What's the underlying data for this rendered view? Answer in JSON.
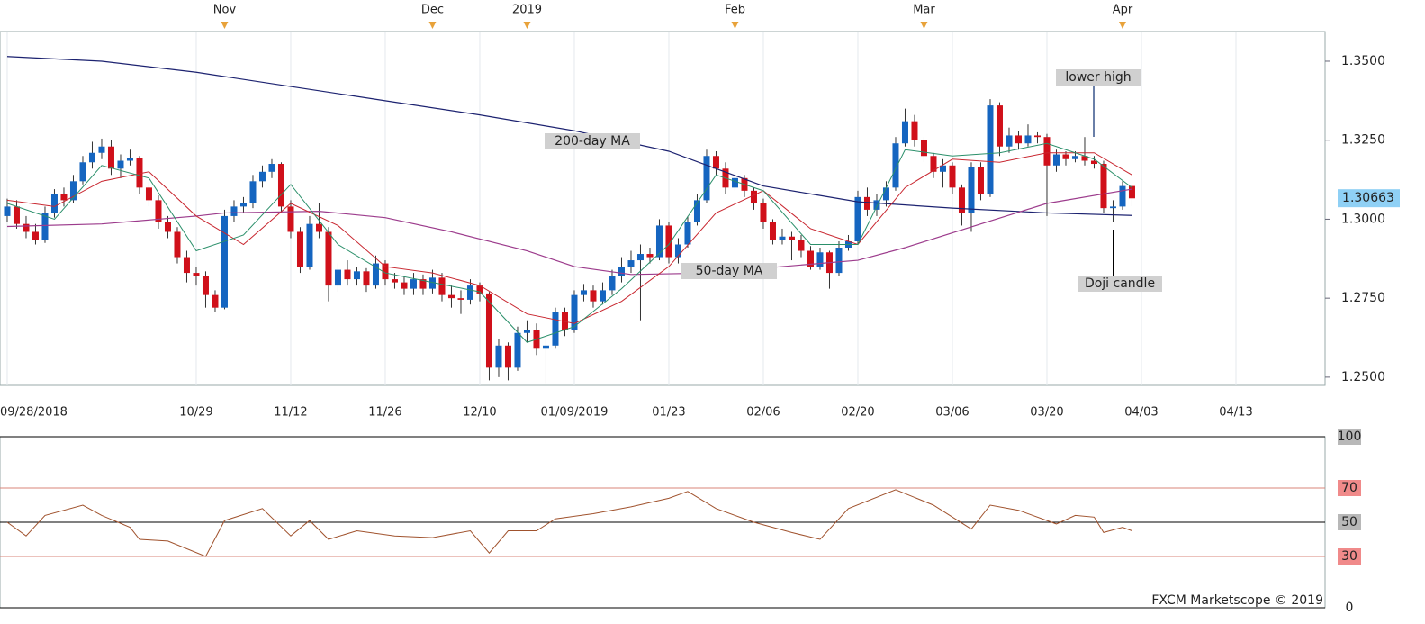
{
  "chart_data": [
    {
      "type": "candlestick",
      "up_color": "#1565c0",
      "down_color": "#d0101a",
      "xlim": [
        -0.76,
        139.43
      ],
      "ylim": [
        1.2474,
        1.3594
      ],
      "yticks": [
        {
          "value": 1.25,
          "label": "1.2500"
        },
        {
          "value": 1.275,
          "label": "1.2750"
        },
        {
          "value": 1.3,
          "label": "1.3000"
        },
        {
          "value": 1.325,
          "label": "1.3250"
        },
        {
          "value": 1.35,
          "label": "1.3500"
        }
      ],
      "xticks": [
        {
          "value": 0,
          "label": "09/28/2018"
        },
        {
          "value": 20,
          "label": "10/29"
        },
        {
          "value": 30,
          "label": "11/12"
        },
        {
          "value": 40,
          "label": "11/26"
        },
        {
          "value": 50,
          "label": "12/10"
        },
        {
          "value": 60,
          "label": "01/09/2019"
        },
        {
          "value": 70,
          "label": "01/23"
        },
        {
          "value": 80,
          "label": "02/06"
        },
        {
          "value": 90,
          "label": "02/20"
        },
        {
          "value": 100,
          "label": "03/06"
        },
        {
          "value": 110,
          "label": "03/20"
        },
        {
          "value": 120,
          "label": "04/03"
        },
        {
          "value": 130,
          "label": "04/13"
        }
      ],
      "x2ticks": [
        {
          "value": 23,
          "label": "Nov"
        },
        {
          "value": 45,
          "label": "Dec"
        },
        {
          "value": 55,
          "label": "2019"
        },
        {
          "value": 77,
          "label": "Feb"
        },
        {
          "value": 97,
          "label": "Mar"
        },
        {
          "value": 118,
          "label": "Apr"
        }
      ],
      "last_price": 1.30663,
      "ohlc": [
        [
          1.301,
          1.3065,
          1.299,
          1.304
        ],
        [
          1.304,
          1.306,
          1.297,
          1.2985
        ],
        [
          1.2985,
          1.301,
          1.294,
          1.296
        ],
        [
          1.296,
          1.2985,
          1.292,
          1.2935
        ],
        [
          1.2935,
          1.304,
          1.2925,
          1.302
        ],
        [
          1.302,
          1.3095,
          1.3005,
          1.308
        ],
        [
          1.308,
          1.31,
          1.304,
          1.306
        ],
        [
          1.306,
          1.314,
          1.305,
          1.312
        ],
        [
          1.312,
          1.32,
          1.311,
          1.318
        ],
        [
          1.318,
          1.3245,
          1.316,
          1.321
        ],
        [
          1.321,
          1.3255,
          1.319,
          1.323
        ],
        [
          1.323,
          1.325,
          1.314,
          1.316
        ],
        [
          1.316,
          1.3205,
          1.313,
          1.3185
        ],
        [
          1.3185,
          1.322,
          1.317,
          1.3195
        ],
        [
          1.3195,
          1.32,
          1.308,
          1.31
        ],
        [
          1.31,
          1.312,
          1.304,
          1.306
        ],
        [
          1.306,
          1.3075,
          1.297,
          1.299
        ],
        [
          1.299,
          1.301,
          1.294,
          1.296
        ],
        [
          1.296,
          1.2975,
          1.286,
          1.288
        ],
        [
          1.288,
          1.29,
          1.28,
          1.283
        ],
        [
          1.283,
          1.285,
          1.279,
          1.282
        ],
        [
          1.282,
          1.2835,
          1.272,
          1.276
        ],
        [
          1.276,
          1.2775,
          1.2705,
          1.272
        ],
        [
          1.272,
          1.303,
          1.2715,
          1.301
        ],
        [
          1.301,
          1.306,
          1.299,
          1.304
        ],
        [
          1.304,
          1.307,
          1.302,
          1.305
        ],
        [
          1.305,
          1.314,
          1.3035,
          1.312
        ],
        [
          1.312,
          1.317,
          1.31,
          1.315
        ],
        [
          1.315,
          1.319,
          1.313,
          1.3175
        ],
        [
          1.3175,
          1.318,
          1.302,
          1.304
        ],
        [
          1.304,
          1.306,
          1.294,
          1.296
        ],
        [
          1.296,
          1.2975,
          1.283,
          1.285
        ],
        [
          1.285,
          1.301,
          1.284,
          1.2985
        ],
        [
          1.2985,
          1.305,
          1.294,
          1.296
        ],
        [
          1.296,
          1.2975,
          1.274,
          1.279
        ],
        [
          1.279,
          1.286,
          1.277,
          1.284
        ],
        [
          1.284,
          1.287,
          1.279,
          1.281
        ],
        [
          1.281,
          1.285,
          1.279,
          1.2835
        ],
        [
          1.2835,
          1.2845,
          1.277,
          1.279
        ],
        [
          1.279,
          1.2885,
          1.278,
          1.286
        ],
        [
          1.286,
          1.287,
          1.279,
          1.281
        ],
        [
          1.281,
          1.283,
          1.278,
          1.28
        ],
        [
          1.28,
          1.282,
          1.276,
          1.278
        ],
        [
          1.278,
          1.283,
          1.276,
          1.281
        ],
        [
          1.281,
          1.2825,
          1.276,
          1.278
        ],
        [
          1.278,
          1.284,
          1.2765,
          1.2815
        ],
        [
          1.2815,
          1.283,
          1.274,
          1.276
        ],
        [
          1.276,
          1.279,
          1.272,
          1.275
        ],
        [
          1.275,
          1.2775,
          1.27,
          1.2745
        ],
        [
          1.2745,
          1.281,
          1.273,
          1.279
        ],
        [
          1.279,
          1.28,
          1.274,
          1.2765
        ],
        [
          1.2765,
          1.277,
          1.249,
          1.253
        ],
        [
          1.253,
          1.262,
          1.25,
          1.26
        ],
        [
          1.26,
          1.261,
          1.249,
          1.253
        ],
        [
          1.253,
          1.266,
          1.252,
          1.264
        ],
        [
          1.264,
          1.268,
          1.261,
          1.265
        ],
        [
          1.265,
          1.267,
          1.257,
          1.259
        ],
        [
          1.259,
          1.262,
          1.248,
          1.26
        ],
        [
          1.26,
          1.272,
          1.259,
          1.2705
        ],
        [
          1.2705,
          1.272,
          1.263,
          1.265
        ],
        [
          1.265,
          1.2775,
          1.264,
          1.276
        ],
        [
          1.276,
          1.2795,
          1.274,
          1.2775
        ],
        [
          1.2775,
          1.279,
          1.272,
          1.274
        ],
        [
          1.274,
          1.28,
          1.273,
          1.2775
        ],
        [
          1.2775,
          1.284,
          1.276,
          1.282
        ],
        [
          1.282,
          1.288,
          1.28,
          1.285
        ],
        [
          1.285,
          1.29,
          1.283,
          1.287
        ],
        [
          1.287,
          1.292,
          1.268,
          1.289
        ],
        [
          1.289,
          1.291,
          1.286,
          1.288
        ],
        [
          1.288,
          1.3,
          1.287,
          1.298
        ],
        [
          1.298,
          1.299,
          1.286,
          1.288
        ],
        [
          1.288,
          1.294,
          1.286,
          1.292
        ],
        [
          1.292,
          1.301,
          1.291,
          1.299
        ],
        [
          1.299,
          1.308,
          1.298,
          1.306
        ],
        [
          1.306,
          1.322,
          1.305,
          1.32
        ],
        [
          1.32,
          1.3215,
          1.314,
          1.316
        ],
        [
          1.316,
          1.318,
          1.308,
          1.31
        ],
        [
          1.31,
          1.315,
          1.309,
          1.313
        ],
        [
          1.313,
          1.314,
          1.307,
          1.309
        ],
        [
          1.309,
          1.31,
          1.303,
          1.305
        ],
        [
          1.305,
          1.3065,
          1.297,
          1.299
        ],
        [
          1.299,
          1.3,
          1.292,
          1.2935
        ],
        [
          1.2935,
          1.297,
          1.292,
          1.2945
        ],
        [
          1.2945,
          1.296,
          1.287,
          1.2935
        ],
        [
          1.2935,
          1.295,
          1.288,
          1.29
        ],
        [
          1.29,
          1.2915,
          1.284,
          1.285
        ],
        [
          1.285,
          1.291,
          1.284,
          1.2895
        ],
        [
          1.2895,
          1.29,
          1.278,
          1.283
        ],
        [
          1.283,
          1.293,
          1.282,
          1.291
        ],
        [
          1.291,
          1.295,
          1.29,
          1.293
        ],
        [
          1.293,
          1.309,
          1.292,
          1.307
        ],
        [
          1.307,
          1.31,
          1.301,
          1.303
        ],
        [
          1.303,
          1.308,
          1.301,
          1.306
        ],
        [
          1.306,
          1.312,
          1.304,
          1.31
        ],
        [
          1.31,
          1.326,
          1.309,
          1.324
        ],
        [
          1.324,
          1.335,
          1.323,
          1.331
        ],
        [
          1.331,
          1.333,
          1.323,
          1.325
        ],
        [
          1.325,
          1.326,
          1.318,
          1.32
        ],
        [
          1.32,
          1.321,
          1.313,
          1.315
        ],
        [
          1.315,
          1.319,
          1.31,
          1.317
        ],
        [
          1.317,
          1.318,
          1.308,
          1.31
        ],
        [
          1.31,
          1.311,
          1.298,
          1.302
        ],
        [
          1.302,
          1.318,
          1.296,
          1.3165
        ],
        [
          1.3165,
          1.318,
          1.306,
          1.308
        ],
        [
          1.308,
          1.338,
          1.307,
          1.336
        ],
        [
          1.336,
          1.337,
          1.32,
          1.323
        ],
        [
          1.323,
          1.329,
          1.321,
          1.3265
        ],
        [
          1.3265,
          1.328,
          1.322,
          1.324
        ],
        [
          1.324,
          1.33,
          1.323,
          1.3265
        ],
        [
          1.3265,
          1.3275,
          1.324,
          1.326
        ],
        [
          1.326,
          1.327,
          1.301,
          1.317
        ],
        [
          1.317,
          1.322,
          1.315,
          1.3205
        ],
        [
          1.3205,
          1.3215,
          1.317,
          1.319
        ],
        [
          1.319,
          1.3215,
          1.318,
          1.32
        ],
        [
          1.32,
          1.326,
          1.317,
          1.3185
        ],
        [
          1.3185,
          1.32,
          1.316,
          1.3175
        ],
        [
          1.3175,
          1.3185,
          1.302,
          1.3035
        ],
        [
          1.3035,
          1.306,
          1.299,
          1.304
        ],
        [
          1.304,
          1.312,
          1.303,
          1.3105
        ],
        [
          1.3105,
          1.311,
          1.304,
          1.3066
        ]
      ],
      "series": [
        {
          "name": "200-day MA",
          "color": "#1c2270",
          "x": [
            0,
            10,
            20,
            30,
            40,
            50,
            60,
            70,
            75,
            80,
            85,
            90,
            100,
            110,
            119
          ],
          "values": [
            1.3515,
            1.35,
            1.3465,
            1.342,
            1.3375,
            1.333,
            1.328,
            1.3215,
            1.316,
            1.3105,
            1.308,
            1.3055,
            1.3035,
            1.302,
            1.3012
          ]
        },
        {
          "name": "50-day MA",
          "color": "#9c3b8c",
          "x": [
            0,
            10,
            20,
            23,
            33,
            40,
            47,
            55,
            60,
            66,
            75,
            80,
            90,
            95,
            103,
            110,
            119
          ],
          "values": [
            1.2977,
            1.2985,
            1.301,
            1.302,
            1.3025,
            1.3005,
            1.296,
            1.29,
            1.285,
            1.2825,
            1.283,
            1.2845,
            1.287,
            1.291,
            1.2985,
            1.305,
            1.3095
          ]
        },
        {
          "color": "#c8262f",
          "x": [
            0,
            5,
            10,
            15,
            20,
            25,
            30,
            35,
            40,
            45,
            50,
            55,
            60,
            65,
            70,
            75,
            80,
            85,
            90,
            95,
            100,
            105,
            110,
            115,
            119
          ],
          "values": [
            1.306,
            1.304,
            1.312,
            1.315,
            1.301,
            1.292,
            1.305,
            1.298,
            1.285,
            1.283,
            1.279,
            1.27,
            1.267,
            1.274,
            1.285,
            1.302,
            1.309,
            1.297,
            1.292,
            1.31,
            1.319,
            1.318,
            1.321,
            1.321,
            1.314
          ]
        },
        {
          "color": "#2a8f6a",
          "x": [
            0,
            5,
            10,
            15,
            20,
            25,
            30,
            35,
            40,
            45,
            50,
            55,
            60,
            65,
            70,
            75,
            80,
            85,
            90,
            95,
            100,
            105,
            110,
            115,
            119
          ],
          "values": [
            1.305,
            1.3,
            1.317,
            1.313,
            1.29,
            1.295,
            1.311,
            1.292,
            1.283,
            1.28,
            1.277,
            1.261,
            1.266,
            1.278,
            1.292,
            1.314,
            1.309,
            1.292,
            1.292,
            1.322,
            1.32,
            1.321,
            1.324,
            1.319,
            1.31
          ]
        }
      ],
      "annotations": [
        "lower high",
        "Doji candle"
      ]
    },
    {
      "type": "line",
      "xlim": [
        -0.76,
        139.43
      ],
      "ylim": [
        0,
        100
      ],
      "yticks": [
        0,
        30,
        50,
        70,
        100
      ],
      "tick_colors": [
        "#000000",
        "#d9847a",
        "#000000",
        "#d9847a",
        "#000000"
      ],
      "tick_backgrounds": [
        null,
        "#f08a8a",
        "#b8b8b8",
        "#f08a8a",
        "#b8b8b8"
      ],
      "series": [
        {
          "color": "#a0522d",
          "x": [
            0,
            2,
            4,
            8,
            10,
            13,
            14,
            17,
            21,
            23,
            27,
            30,
            32,
            34,
            37,
            41,
            45,
            49,
            51,
            53,
            56,
            58,
            62,
            66,
            70,
            72,
            75,
            79,
            83,
            86,
            89,
            94,
            98,
            102,
            104,
            107,
            111,
            113,
            115,
            116,
            118,
            119
          ],
          "values": [
            50,
            42,
            54,
            60,
            54,
            47,
            40,
            39,
            30,
            51,
            58,
            42,
            51,
            40,
            45,
            42,
            41,
            45,
            32,
            45,
            45,
            52,
            55,
            59,
            64,
            68,
            58,
            50,
            44,
            40,
            58,
            69,
            60,
            46,
            60,
            57,
            49,
            54,
            53,
            44,
            47,
            45
          ]
        }
      ],
      "note": "FXCM Marketscope © 2019"
    }
  ]
}
